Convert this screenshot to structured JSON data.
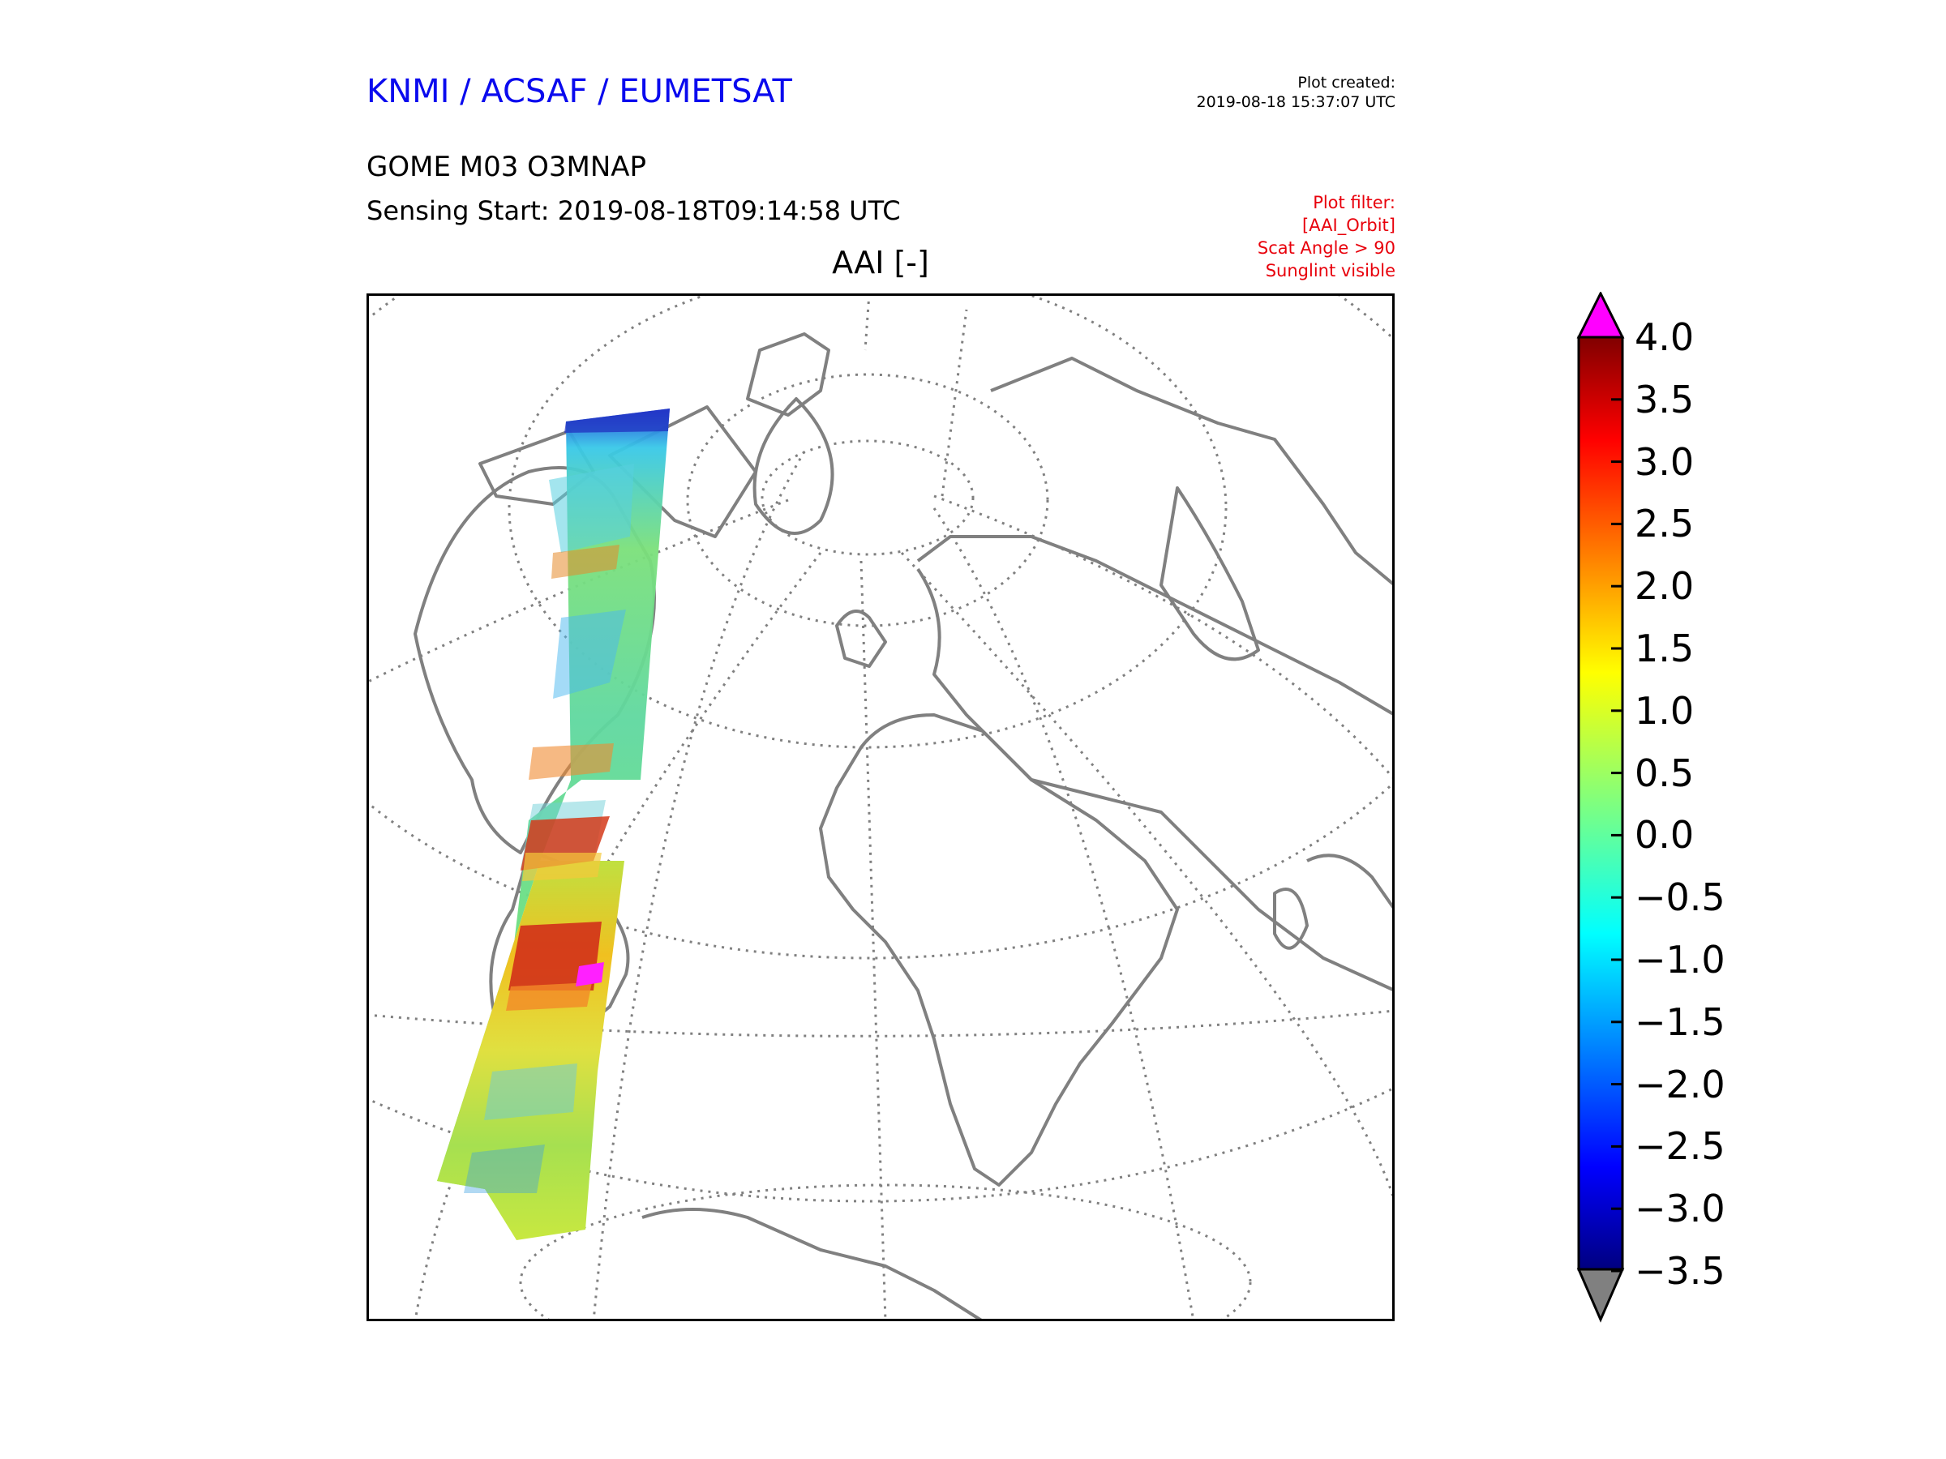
{
  "header": {
    "agency": "KNMI / ACSAF / EUMETSAT",
    "agency_color": "#0a0aee",
    "created_label": "Plot created:",
    "created_time": "2019-08-18 15:37:07 UTC",
    "product": "GOME M03 O3MNAP",
    "sensing_start": "Sensing Start: 2019-08-18T09:14:58 UTC",
    "filter_color": "#e8000b",
    "filter_lines": [
      "Plot filter:",
      "[AAI_Orbit]",
      "Scat Angle > 90",
      "Sunglint visible"
    ]
  },
  "map": {
    "title": "AAI [-]",
    "projection": "orthographic",
    "coastline_color": "#808080",
    "graticule_color": "#808080",
    "graticule_style": "dotted"
  },
  "colorbar": {
    "ticks": [
      "4.0",
      "3.5",
      "3.0",
      "2.5",
      "2.0",
      "1.5",
      "1.0",
      "0.5",
      "0.0",
      "−0.5",
      "−1.0",
      "−1.5",
      "−2.0",
      "−2.5",
      "−3.0",
      "−3.5"
    ],
    "over_color": "#ff00ff",
    "under_color": "#808080",
    "colormap": "jet"
  }
}
